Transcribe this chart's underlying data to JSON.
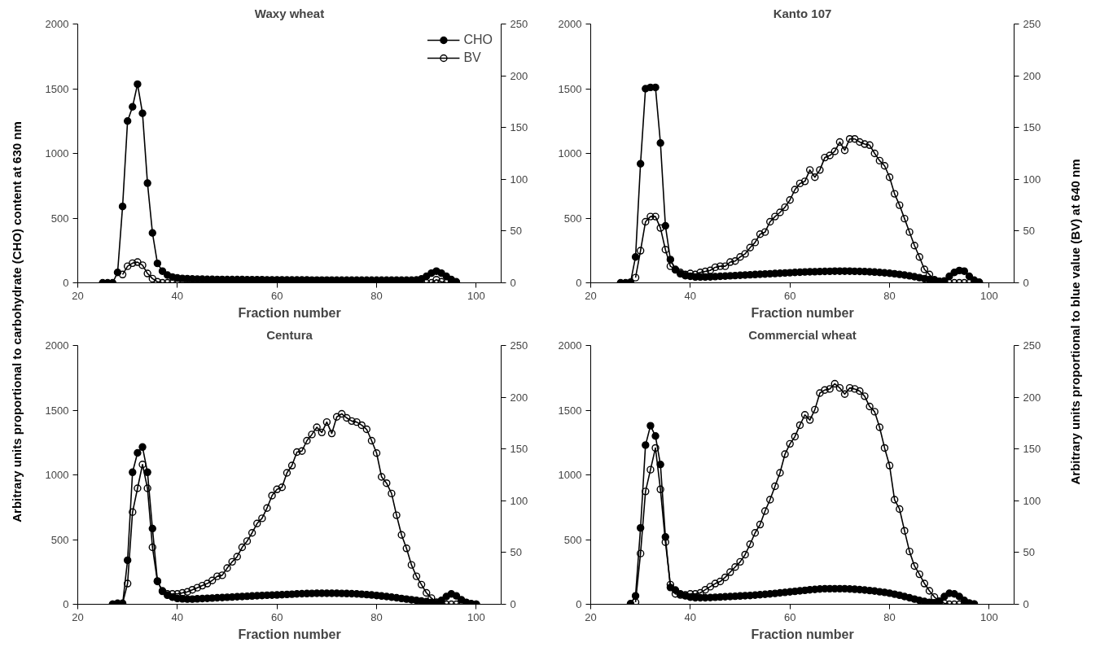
{
  "chart_data": [
    {
      "type": "line",
      "title": "Waxy wheat",
      "xlabel": "Fraction number",
      "ylabel": "Arbitrary units proportional to carbohydrate (CHO) content at 630 nm",
      "xlim": [
        20,
        105
      ],
      "xticks": [
        20,
        40,
        60,
        80,
        100
      ],
      "ylim": [
        0,
        2000
      ],
      "yticks": [
        0,
        500,
        1000,
        1500,
        2000
      ],
      "y2lim": [
        0,
        250
      ],
      "y2ticks": [
        0,
        50,
        100,
        150,
        200,
        250
      ],
      "legend": "top right",
      "x": [
        25,
        26,
        27,
        28,
        29,
        30,
        31,
        32,
        33,
        34,
        35,
        36,
        37,
        38,
        39,
        40,
        41,
        42,
        43,
        44,
        45,
        46,
        47,
        48,
        49,
        50,
        51,
        52,
        53,
        54,
        55,
        56,
        57,
        58,
        59,
        60,
        61,
        62,
        63,
        64,
        65,
        66,
        67,
        68,
        69,
        70,
        71,
        72,
        73,
        74,
        75,
        76,
        77,
        78,
        79,
        80,
        81,
        82,
        83,
        84,
        85,
        86,
        87,
        88,
        89,
        90,
        91,
        92,
        93,
        94,
        95,
        96
      ],
      "series": [
        {
          "name": "CHO",
          "color": "#000000",
          "marker": "circle",
          "values": [
            0,
            0,
            0,
            80,
            590,
            1250,
            1360,
            1535,
            1310,
            770,
            385,
            150,
            90,
            60,
            45,
            38,
            34,
            32,
            30,
            29,
            28,
            27,
            27,
            26,
            26,
            25,
            25,
            25,
            25,
            24,
            24,
            24,
            24,
            23,
            23,
            23,
            23,
            22,
            22,
            22,
            22,
            22,
            21,
            21,
            21,
            21,
            21,
            20,
            20,
            20,
            20,
            20,
            20,
            20,
            20,
            20,
            20,
            20,
            20,
            20,
            20,
            20,
            20,
            22,
            30,
            50,
            75,
            90,
            75,
            50,
            25,
            8
          ]
        },
        {
          "name": "BV",
          "color": "#000000",
          "marker": "circle_open",
          "axis": "y2",
          "values": [
            null,
            null,
            null,
            null,
            8,
            16,
            19,
            20,
            17,
            9,
            4,
            1,
            0,
            0,
            0,
            0,
            0,
            0,
            0,
            0,
            0,
            0,
            0,
            0,
            0,
            0,
            0,
            0,
            0,
            0,
            0,
            0,
            0,
            0,
            0,
            0,
            0,
            0,
            0,
            0,
            0,
            0,
            0,
            0,
            0,
            0,
            0,
            0,
            0,
            0,
            0,
            0,
            0,
            0,
            0,
            0,
            0,
            0,
            0,
            0,
            0,
            0,
            0,
            0,
            0,
            0,
            0,
            3,
            1,
            0,
            0,
            0
          ]
        }
      ]
    },
    {
      "type": "line",
      "title": "Kanto 107",
      "xlabel": "Fraction number",
      "y2label": "Arbitrary units proportional to blue value (BV) at 640 nm",
      "xlim": [
        20,
        105
      ],
      "xticks": [
        20,
        40,
        60,
        80,
        100
      ],
      "ylim": [
        0,
        2000
      ],
      "yticks": [
        0,
        500,
        1000,
        1500,
        2000
      ],
      "y2lim": [
        0,
        250
      ],
      "y2ticks": [
        0,
        50,
        100,
        150,
        200,
        250
      ],
      "x": [
        26,
        27,
        28,
        29,
        30,
        31,
        32,
        33,
        34,
        35,
        36,
        37,
        38,
        39,
        40,
        41,
        42,
        43,
        44,
        45,
        46,
        47,
        48,
        49,
        50,
        51,
        52,
        53,
        54,
        55,
        56,
        57,
        58,
        59,
        60,
        61,
        62,
        63,
        64,
        65,
        66,
        67,
        68,
        69,
        70,
        71,
        72,
        73,
        74,
        75,
        76,
        77,
        78,
        79,
        80,
        81,
        82,
        83,
        84,
        85,
        86,
        87,
        88,
        89,
        90,
        91,
        92,
        93,
        94,
        95,
        96,
        97,
        98
      ],
      "series": [
        {
          "color": "#000000",
          "marker": "circle",
          "values": [
            0,
            0,
            5,
            200,
            920,
            1500,
            1510,
            1510,
            1080,
            440,
            180,
            100,
            70,
            55,
            50,
            45,
            45,
            45,
            46,
            48,
            50,
            52,
            54,
            56,
            58,
            60,
            62,
            64,
            66,
            68,
            70,
            72,
            74,
            76,
            78,
            80,
            82,
            84,
            85,
            86,
            87,
            88,
            89,
            90,
            90,
            90,
            90,
            89,
            88,
            87,
            85,
            83,
            80,
            77,
            74,
            70,
            65,
            60,
            54,
            47,
            40,
            32,
            25,
            18,
            12,
            15,
            50,
            80,
            95,
            90,
            50,
            20,
            5
          ]
        },
        {
          "color": "#000000",
          "marker": "circle_open",
          "axis": "y2",
          "values": [
            null,
            null,
            null,
            5,
            31,
            59,
            64,
            64,
            53,
            32,
            16,
            13,
            10,
            8,
            9,
            8,
            10,
            11,
            12,
            15,
            16,
            16,
            20,
            21,
            25,
            28,
            34,
            39,
            47,
            49,
            59,
            64,
            68,
            73,
            80,
            90,
            96,
            98,
            109,
            102,
            109,
            121,
            123,
            127,
            136,
            128,
            139,
            139,
            136,
            134,
            133,
            125,
            118,
            113,
            102,
            86,
            75,
            62,
            49,
            36,
            25,
            13,
            8,
            3,
            1,
            0,
            0,
            0,
            0,
            0,
            0,
            0,
            0
          ]
        }
      ]
    },
    {
      "type": "line",
      "title": "Centura",
      "xlabel": "Fraction number",
      "xlim": [
        20,
        105
      ],
      "xticks": [
        20,
        40,
        60,
        80,
        100
      ],
      "ylim": [
        0,
        2000
      ],
      "yticks": [
        0,
        500,
        1000,
        1500,
        2000
      ],
      "y2lim": [
        0,
        250
      ],
      "y2ticks": [
        0,
        50,
        100,
        150,
        200,
        250
      ],
      "x": [
        27,
        28,
        29,
        30,
        31,
        32,
        33,
        34,
        35,
        36,
        37,
        38,
        39,
        40,
        41,
        42,
        43,
        44,
        45,
        46,
        47,
        48,
        49,
        50,
        51,
        52,
        53,
        54,
        55,
        56,
        57,
        58,
        59,
        60,
        61,
        62,
        63,
        64,
        65,
        66,
        67,
        68,
        69,
        70,
        71,
        72,
        73,
        74,
        75,
        76,
        77,
        78,
        79,
        80,
        81,
        82,
        83,
        84,
        85,
        86,
        87,
        88,
        89,
        90,
        91,
        92,
        93,
        94,
        95,
        96,
        97,
        98,
        99,
        100
      ],
      "series": [
        {
          "color": "#000000",
          "marker": "circle",
          "values": [
            0,
            0,
            0,
            340,
            1020,
            1170,
            1215,
            1020,
            585,
            180,
            100,
            70,
            55,
            45,
            42,
            40,
            40,
            42,
            44,
            46,
            48,
            50,
            52,
            54,
            56,
            58,
            60,
            62,
            64,
            66,
            68,
            70,
            71,
            72,
            74,
            76,
            78,
            80,
            82,
            83,
            84,
            85,
            85,
            85,
            85,
            85,
            84,
            83,
            82,
            80,
            78,
            75,
            72,
            68,
            64,
            60,
            55,
            50,
            45,
            40,
            35,
            30,
            25,
            20,
            15,
            10,
            30,
            60,
            80,
            65,
            35,
            15,
            5,
            0
          ]
        },
        {
          "color": "#000000",
          "marker": "circle_open",
          "axis": "y2",
          "values": [
            0,
            1,
            1,
            20,
            89,
            112,
            135,
            112,
            55,
            22,
            13,
            10,
            10,
            10,
            11,
            12,
            14,
            16,
            18,
            20,
            23,
            27,
            28,
            35,
            41,
            46,
            55,
            61,
            69,
            78,
            83,
            93,
            105,
            111,
            113,
            127,
            134,
            147,
            148,
            158,
            164,
            171,
            166,
            176,
            165,
            181,
            184,
            180,
            177,
            176,
            173,
            169,
            158,
            146,
            123,
            117,
            107,
            86,
            67,
            54,
            38,
            27,
            19,
            11,
            6,
            2,
            1,
            0,
            0,
            0,
            0,
            0,
            0,
            0
          ]
        }
      ]
    },
    {
      "type": "line",
      "title": "Commercial wheat",
      "xlabel": "Fraction number",
      "xlim": [
        20,
        105
      ],
      "xticks": [
        20,
        40,
        60,
        80,
        100
      ],
      "ylim": [
        0,
        2000
      ],
      "yticks": [
        0,
        500,
        1000,
        1500,
        2000
      ],
      "y2lim": [
        0,
        250
      ],
      "y2ticks": [
        0,
        50,
        100,
        150,
        200,
        250
      ],
      "x": [
        28,
        29,
        30,
        31,
        32,
        33,
        34,
        35,
        36,
        37,
        38,
        39,
        40,
        41,
        42,
        43,
        44,
        45,
        46,
        47,
        48,
        49,
        50,
        51,
        52,
        53,
        54,
        55,
        56,
        57,
        58,
        59,
        60,
        61,
        62,
        63,
        64,
        65,
        66,
        67,
        68,
        69,
        70,
        71,
        72,
        73,
        74,
        75,
        76,
        77,
        78,
        79,
        80,
        81,
        82,
        83,
        84,
        85,
        86,
        87,
        88,
        89,
        90,
        91,
        92,
        93,
        94,
        95,
        96,
        97
      ],
      "series": [
        {
          "color": "#000000",
          "marker": "circle",
          "values": [
            5,
            65,
            590,
            1230,
            1380,
            1300,
            1080,
            520,
            130,
            110,
            80,
            65,
            55,
            50,
            50,
            50,
            52,
            54,
            56,
            58,
            60,
            62,
            64,
            66,
            68,
            71,
            74,
            77,
            80,
            84,
            88,
            92,
            96,
            100,
            104,
            108,
            112,
            115,
            118,
            120,
            120,
            120,
            120,
            120,
            118,
            116,
            113,
            110,
            106,
            102,
            97,
            92,
            86,
            78,
            70,
            60,
            50,
            40,
            30,
            22,
            15,
            12,
            20,
            60,
            85,
            80,
            60,
            30,
            10,
            2
          ]
        },
        {
          "color": "#000000",
          "marker": "circle_open",
          "axis": "y2",
          "values": [
            null,
            2,
            49,
            109,
            130,
            151,
            111,
            60,
            19,
            10,
            9,
            9,
            10,
            10,
            11,
            14,
            17,
            20,
            22,
            26,
            31,
            36,
            41,
            48,
            58,
            69,
            77,
            90,
            101,
            114,
            127,
            145,
            155,
            162,
            173,
            183,
            178,
            188,
            204,
            207,
            208,
            213,
            209,
            203,
            209,
            208,
            206,
            201,
            191,
            186,
            171,
            151,
            134,
            101,
            92,
            71,
            51,
            37,
            29,
            20,
            13,
            7,
            3,
            1,
            0,
            0,
            0,
            0,
            0,
            0
          ]
        }
      ]
    }
  ]
}
